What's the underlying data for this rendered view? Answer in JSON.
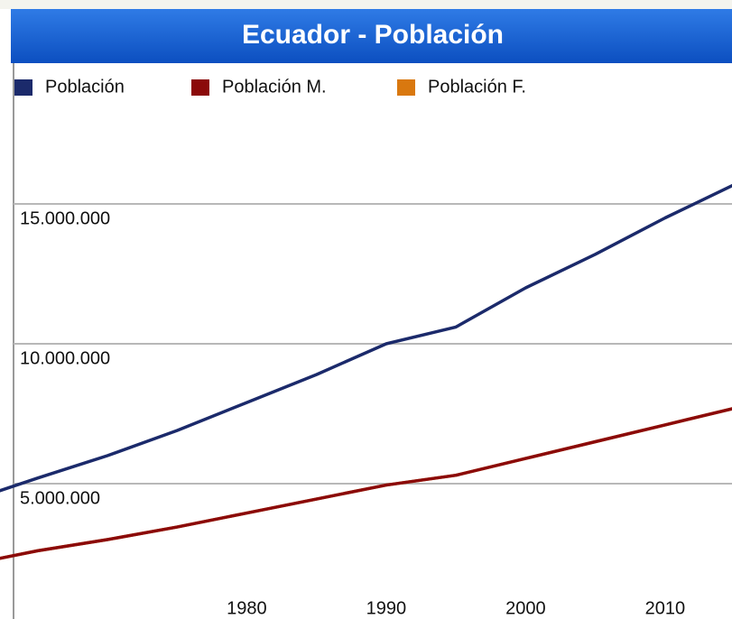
{
  "chart_data": {
    "type": "line",
    "title": "Ecuador - Población",
    "x": [
      1962,
      1965,
      1970,
      1975,
      1980,
      1985,
      1990,
      1995,
      2000,
      2005,
      2010,
      2015
    ],
    "series": [
      {
        "name": "Población",
        "color": "#1b2a6b",
        "values": [
          4700000,
          5200000,
          6000000,
          6900000,
          7900000,
          8900000,
          10000000,
          10600000,
          12000000,
          13200000,
          14500000,
          15700000
        ]
      },
      {
        "name": "Población M.",
        "color": "#8b0a0a",
        "values": [
          2300000,
          2600000,
          3000000,
          3450000,
          3950000,
          4450000,
          4950000,
          5300000,
          5900000,
          6500000,
          7100000,
          7700000
        ]
      },
      {
        "name": "Población F.",
        "color": "#d9780f",
        "values": [
          2300000,
          2600000,
          3000000,
          3450000,
          3950000,
          4450000,
          4950000,
          5300000,
          5900000,
          6500000,
          7100000,
          7700000
        ]
      }
    ],
    "xlim": [
      1962.3,
      2014.8
    ],
    "xticks": [
      1980,
      1990,
      2000,
      2010
    ],
    "ylim": [
      0,
      20000000
    ],
    "yticks": [
      {
        "value": 5000000,
        "label": "5.000.000"
      },
      {
        "value": 10000000,
        "label": "10.000.000"
      },
      {
        "value": 15000000,
        "label": "15.000.000"
      }
    ],
    "grid": true
  }
}
